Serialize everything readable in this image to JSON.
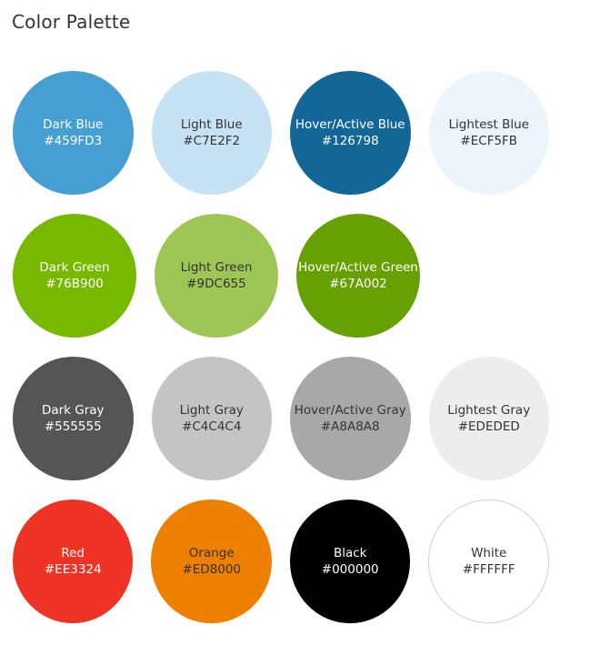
{
  "page": {
    "title": "Color Palette"
  },
  "palette": {
    "rows": [
      [
        {
          "name": "Dark Blue",
          "hex": "#459FD3",
          "color": "#459FD3",
          "text_color": "#FFFFFF"
        },
        {
          "name": "Light Blue",
          "hex": "#C7E2F2",
          "color": "#C7E2F2",
          "text_color": "#333333"
        },
        {
          "name": "Hover/Active Blue",
          "hex": "#126798",
          "color": "#126798",
          "text_color": "#FFFFFF"
        },
        {
          "name": "Lightest Blue",
          "hex": "#ECF5FB",
          "color": "#ECF5FB",
          "text_color": "#333333"
        }
      ],
      [
        {
          "name": "Dark Green",
          "hex": "#76B900",
          "color": "#76B900",
          "text_color": "#FFFFFF"
        },
        {
          "name": "Light Green",
          "hex": "#9DC655",
          "color": "#9DC655",
          "text_color": "#333333"
        },
        {
          "name": "Hover/Active Green",
          "hex": "#67A002",
          "color": "#67A002",
          "text_color": "#FFFFFF"
        }
      ],
      [
        {
          "name": "Dark Gray",
          "hex": "#555555",
          "color": "#555555",
          "text_color": "#FFFFFF"
        },
        {
          "name": "Light Gray",
          "hex": "#C4C4C4",
          "color": "#C4C4C4",
          "text_color": "#333333"
        },
        {
          "name": "Hover/Active Gray",
          "hex": "#A8A8A8",
          "color": "#A8A8A8",
          "text_color": "#333333"
        },
        {
          "name": "Lightest Gray",
          "hex": "#EDEDED",
          "color": "#EDEDED",
          "text_color": "#333333"
        }
      ],
      [
        {
          "name": "Red",
          "hex": "#EE3324",
          "color": "#EE3324",
          "text_color": "#FFFFFF"
        },
        {
          "name": "Orange",
          "hex": "#ED8000",
          "color": "#ED8000",
          "text_color": "#333333"
        },
        {
          "name": "Black",
          "hex": "#000000",
          "color": "#000000",
          "text_color": "#FFFFFF"
        },
        {
          "name": "White",
          "hex": "#FFFFFF",
          "color": "#FFFFFF",
          "text_color": "#333333",
          "outlined": true
        }
      ]
    ]
  }
}
